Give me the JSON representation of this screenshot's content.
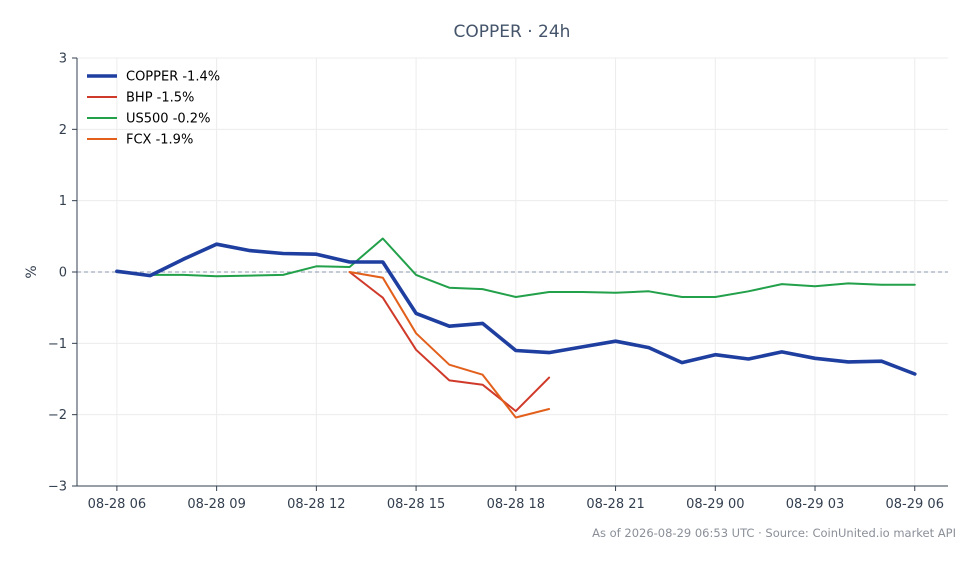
{
  "chart_data": {
    "type": "line",
    "title": "COPPER · 24h",
    "ylabel": "%",
    "ylim": [
      -3,
      3
    ],
    "yticks": [
      -3,
      -2,
      -1,
      0,
      1,
      2,
      3
    ],
    "ytick_labels": [
      "−3",
      "−2",
      "−1",
      "0",
      "1",
      "2",
      "3"
    ],
    "xticks": [
      0,
      3,
      6,
      9,
      12,
      15,
      18,
      21,
      24
    ],
    "xtick_labels": [
      "08-28 06",
      "08-28 09",
      "08-28 12",
      "08-28 15",
      "08-28 18",
      "08-28 21",
      "08-29 00",
      "08-29 03",
      "08-29 06"
    ],
    "xlim": [
      -1.2,
      25
    ],
    "grid": true,
    "zero_line": true,
    "legend_position": "top-left",
    "series": [
      {
        "name": "COPPER",
        "legend_label": "COPPER -1.4%",
        "color": "#1f3fa0",
        "weight": "thick",
        "x": [
          0,
          1,
          2,
          3,
          4,
          5,
          6,
          7,
          8,
          9,
          10,
          11,
          12,
          13,
          14,
          15,
          16,
          17,
          18,
          19,
          20,
          21,
          22,
          23,
          24
        ],
        "y": [
          0.01,
          -0.05,
          0.18,
          0.39,
          0.3,
          0.26,
          0.25,
          0.14,
          0.14,
          -0.58,
          -0.76,
          -0.72,
          -1.1,
          -1.13,
          -1.05,
          -0.97,
          -1.06,
          -1.27,
          -1.16,
          -1.22,
          -1.12,
          -1.21,
          -1.26,
          -1.25,
          -1.43
        ]
      },
      {
        "name": "BHP",
        "legend_label": "BHP -1.5%",
        "color": "#d03a2a",
        "weight": "normal",
        "x": [
          7,
          8,
          9,
          10,
          11,
          12,
          13
        ],
        "y": [
          0.0,
          -0.36,
          -1.09,
          -1.52,
          -1.58,
          -1.95,
          -1.48
        ]
      },
      {
        "name": "US500",
        "legend_label": "US500 -0.2%",
        "color": "#22a04a",
        "weight": "normal",
        "x": [
          0,
          1,
          2,
          3,
          4,
          5,
          6,
          7,
          8,
          9,
          10,
          11,
          12,
          13,
          14,
          15,
          16,
          17,
          18,
          19,
          20,
          21,
          22,
          23,
          24
        ],
        "y": [
          0.0,
          -0.04,
          -0.04,
          -0.06,
          -0.05,
          -0.04,
          0.08,
          0.07,
          0.47,
          -0.04,
          -0.22,
          -0.24,
          -0.35,
          -0.28,
          -0.28,
          -0.29,
          -0.27,
          -0.35,
          -0.35,
          -0.27,
          -0.17,
          -0.2,
          -0.16,
          -0.18,
          -0.18
        ]
      },
      {
        "name": "FCX",
        "legend_label": "FCX -1.9%",
        "color": "#e2601c",
        "weight": "normal",
        "x": [
          7,
          8,
          9,
          10,
          11,
          12,
          13
        ],
        "y": [
          0.0,
          -0.08,
          -0.86,
          -1.3,
          -1.44,
          -2.04,
          -1.92
        ]
      }
    ]
  },
  "footer": "As of 2026-08-29 06:53 UTC · Source: CoinUnited.io market API"
}
